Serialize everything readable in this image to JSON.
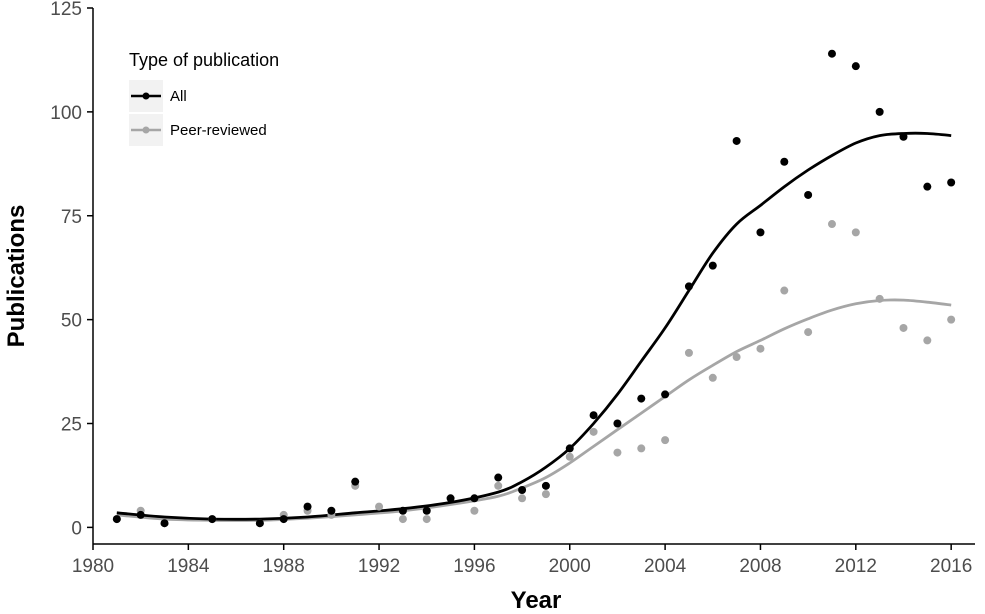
{
  "chart_data": {
    "type": "scatter",
    "title": "",
    "xlabel": "Year",
    "ylabel": "Publications",
    "xlim": [
      1980,
      2017
    ],
    "ylim": [
      -4,
      125
    ],
    "x_ticks": [
      1980,
      1984,
      1988,
      1992,
      1996,
      2000,
      2004,
      2008,
      2012,
      2016
    ],
    "y_ticks": [
      0,
      25,
      50,
      75,
      100,
      125
    ],
    "grid": false,
    "legend": {
      "title": "Type of publication",
      "position": "top-left"
    },
    "series": [
      {
        "name": "All",
        "color": "#000000",
        "points": [
          [
            1981,
            2
          ],
          [
            1982,
            3
          ],
          [
            1983,
            1
          ],
          [
            1985,
            2
          ],
          [
            1987,
            1
          ],
          [
            1988,
            2
          ],
          [
            1989,
            5
          ],
          [
            1990,
            4
          ],
          [
            1991,
            11
          ],
          [
            1993,
            4
          ],
          [
            1994,
            4
          ],
          [
            1995,
            7
          ],
          [
            1996,
            7
          ],
          [
            1997,
            12
          ],
          [
            1998,
            9
          ],
          [
            1999,
            10
          ],
          [
            2000,
            19
          ],
          [
            2001,
            27
          ],
          [
            2002,
            25
          ],
          [
            2003,
            31
          ],
          [
            2004,
            32
          ],
          [
            2005,
            58
          ],
          [
            2006,
            63
          ],
          [
            2007,
            93
          ],
          [
            2008,
            71
          ],
          [
            2009,
            88
          ],
          [
            2010,
            80
          ],
          [
            2011,
            114
          ],
          [
            2012,
            111
          ],
          [
            2013,
            100
          ],
          [
            2014,
            94
          ],
          [
            2015,
            82
          ],
          [
            2016,
            83
          ]
        ],
        "smooth": [
          [
            1981,
            3.5
          ],
          [
            1983,
            2.5
          ],
          [
            1985,
            2
          ],
          [
            1987,
            2
          ],
          [
            1989,
            2.5
          ],
          [
            1991,
            3.5
          ],
          [
            1993,
            4.5
          ],
          [
            1995,
            6
          ],
          [
            1997,
            8.5
          ],
          [
            1998,
            11
          ],
          [
            1999,
            14.5
          ],
          [
            2000,
            19
          ],
          [
            2001,
            25
          ],
          [
            2002,
            32
          ],
          [
            2003,
            40
          ],
          [
            2004,
            48
          ],
          [
            2005,
            57
          ],
          [
            2006,
            66
          ],
          [
            2007,
            73
          ],
          [
            2008,
            77.5
          ],
          [
            2009,
            82
          ],
          [
            2010,
            86
          ],
          [
            2011,
            89.5
          ],
          [
            2012,
            92.5
          ],
          [
            2013,
            94.3
          ],
          [
            2014,
            94.8
          ],
          [
            2015,
            94.8
          ],
          [
            2016,
            94.3
          ]
        ]
      },
      {
        "name": "Peer-reviewed",
        "color": "#a6a6a6",
        "points": [
          [
            1981,
            2
          ],
          [
            1982,
            4
          ],
          [
            1983,
            1
          ],
          [
            1985,
            2
          ],
          [
            1987,
            1
          ],
          [
            1988,
            3
          ],
          [
            1989,
            4
          ],
          [
            1990,
            3
          ],
          [
            1991,
            10
          ],
          [
            1992,
            5
          ],
          [
            1993,
            2
          ],
          [
            1994,
            2
          ],
          [
            1996,
            4
          ],
          [
            1997,
            10
          ],
          [
            1998,
            7
          ],
          [
            1999,
            8
          ],
          [
            2000,
            17
          ],
          [
            2001,
            23
          ],
          [
            2002,
            18
          ],
          [
            2003,
            19
          ],
          [
            2004,
            21
          ],
          [
            2005,
            42
          ],
          [
            2006,
            36
          ],
          [
            2007,
            41
          ],
          [
            2008,
            43
          ],
          [
            2009,
            57
          ],
          [
            2010,
            47
          ],
          [
            2011,
            73
          ],
          [
            2012,
            71
          ],
          [
            2013,
            55
          ],
          [
            2014,
            48
          ],
          [
            2015,
            45
          ],
          [
            2016,
            50
          ]
        ],
        "smooth": [
          [
            1981,
            3
          ],
          [
            1983,
            2
          ],
          [
            1985,
            1.7
          ],
          [
            1987,
            1.7
          ],
          [
            1989,
            2.2
          ],
          [
            1991,
            3
          ],
          [
            1993,
            4
          ],
          [
            1995,
            5.5
          ],
          [
            1997,
            7.5
          ],
          [
            1998,
            9.5
          ],
          [
            1999,
            12
          ],
          [
            2000,
            15.5
          ],
          [
            2001,
            19.5
          ],
          [
            2002,
            23.5
          ],
          [
            2003,
            27.5
          ],
          [
            2004,
            31.5
          ],
          [
            2005,
            35.5
          ],
          [
            2006,
            39
          ],
          [
            2007,
            42.3
          ],
          [
            2008,
            45
          ],
          [
            2009,
            47.8
          ],
          [
            2010,
            50.2
          ],
          [
            2011,
            52.3
          ],
          [
            2012,
            53.8
          ],
          [
            2013,
            54.6
          ],
          [
            2014,
            54.7
          ],
          [
            2015,
            54.2
          ],
          [
            2016,
            53.5
          ]
        ]
      }
    ]
  }
}
